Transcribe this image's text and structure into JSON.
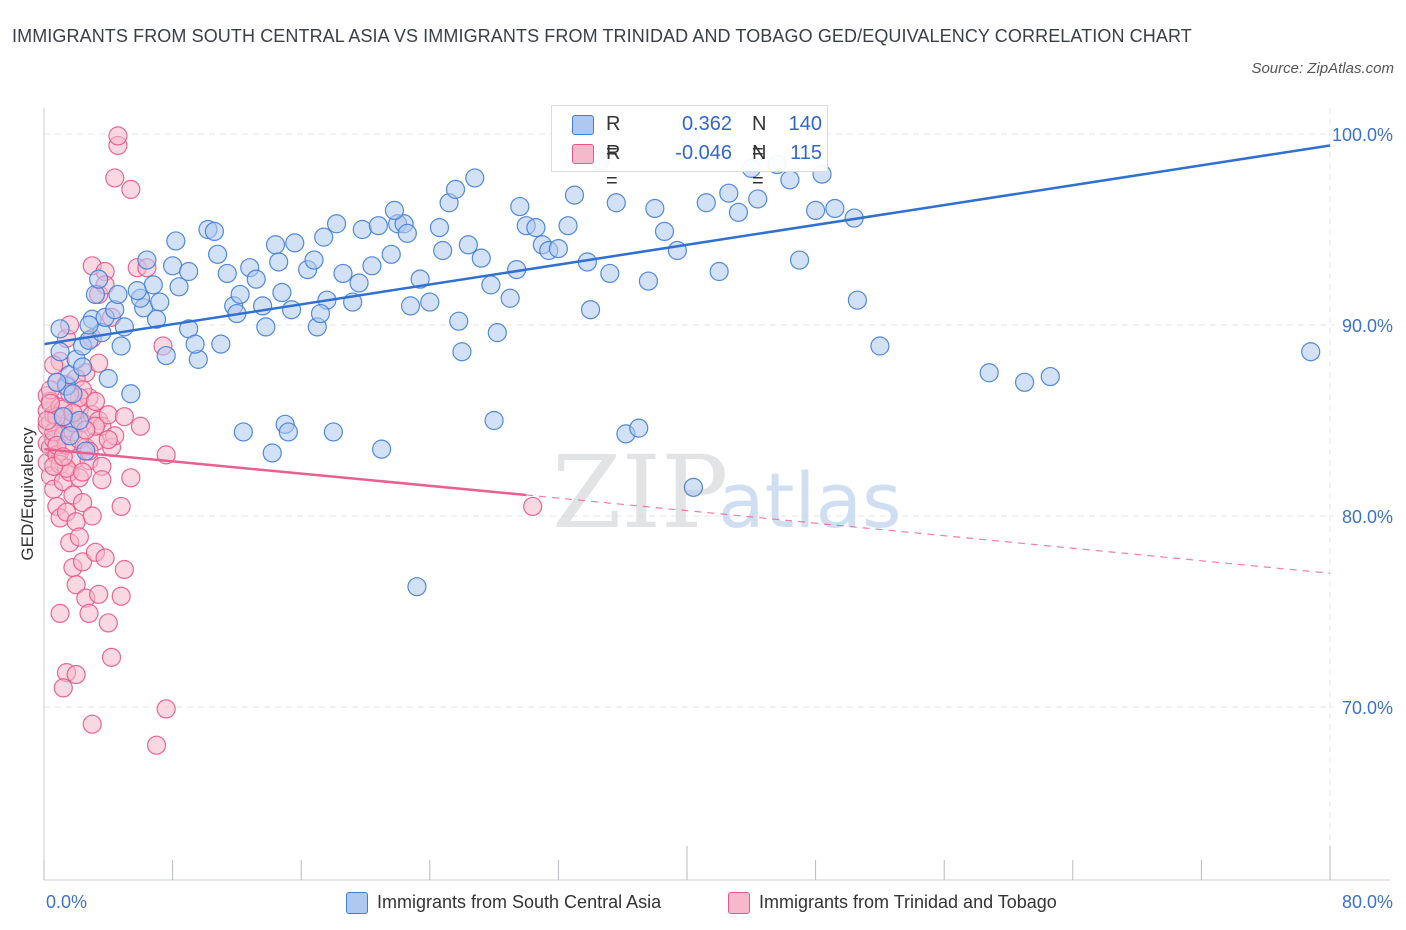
{
  "title": "IMMIGRANTS FROM SOUTH CENTRAL ASIA VS IMMIGRANTS FROM TRINIDAD AND TOBAGO GED/EQUIVALENCY CORRELATION CHART",
  "source": "Source: ZipAtlas.com",
  "watermark": {
    "zip": "ZIP",
    "atlas": "atlas"
  },
  "colors": {
    "blue": "#3f7dd9",
    "blue_fill": "#aec8f0",
    "blue_line": "#3070d0",
    "pink": "#e8578a",
    "pink_fill": "#f6b8cb",
    "pink_line": "#e8608f",
    "tick_text": "#3d72c9",
    "grid": "#e3e6ea"
  },
  "legend": {
    "r_label": "R =",
    "n_label": "N =",
    "series_a": {
      "r": "0.362",
      "n": "140"
    },
    "series_b": {
      "r": "-0.046",
      "n": "115"
    }
  },
  "bottom_legend": {
    "series_a": "Immigrants from South Central Asia",
    "series_b": "Immigrants from Trinidad and Tobago"
  },
  "chart_data": {
    "type": "scatter",
    "title": "IMMIGRANTS FROM SOUTH CENTRAL ASIA VS IMMIGRANTS FROM TRINIDAD AND TOBAGO GED/EQUIVALENCY CORRELATION CHART",
    "xlabel": "",
    "ylabel": "GED/Equivalency",
    "xlim": [
      0,
      80
    ],
    "ylim": [
      60,
      102
    ],
    "x_tick_labels": [
      "0.0%",
      "80.0%"
    ],
    "y_ticks": [
      100,
      90,
      80,
      70
    ],
    "y_tick_labels": [
      "100.0%",
      "90.0%",
      "80.0%",
      "70.0%"
    ],
    "grid": true,
    "legend_position": "top-center",
    "series": [
      {
        "name": "Immigrants from South Central Asia",
        "R": 0.362,
        "N": 140,
        "trend": {
          "x": [
            0,
            80
          ],
          "y": [
            89.0,
            99.4
          ],
          "style": "solid"
        },
        "points": [
          [
            1.0,
            88.6
          ],
          [
            1.4,
            86.8
          ],
          [
            1.6,
            87.4
          ],
          [
            2.0,
            88.2
          ],
          [
            2.4,
            88.9
          ],
          [
            2.8,
            89.2
          ],
          [
            3.0,
            90.3
          ],
          [
            3.2,
            91.6
          ],
          [
            3.6,
            89.6
          ],
          [
            3.8,
            90.4
          ],
          [
            4.0,
            87.2
          ],
          [
            4.4,
            90.8
          ],
          [
            4.6,
            91.6
          ],
          [
            5.0,
            89.9
          ],
          [
            5.4,
            86.4
          ],
          [
            6.2,
            90.9
          ],
          [
            6.8,
            92.1
          ],
          [
            7.2,
            91.2
          ],
          [
            7.6,
            88.4
          ],
          [
            8.0,
            93.1
          ],
          [
            8.4,
            92.0
          ],
          [
            9.0,
            89.8
          ],
          [
            9.6,
            88.2
          ],
          [
            10.2,
            95.0
          ],
          [
            10.6,
            94.9
          ],
          [
            11.4,
            92.7
          ],
          [
            11.8,
            91.0
          ],
          [
            12.2,
            91.6
          ],
          [
            12.8,
            93.0
          ],
          [
            13.2,
            92.4
          ],
          [
            13.8,
            89.9
          ],
          [
            14.4,
            94.2
          ],
          [
            14.8,
            91.7
          ],
          [
            15.4,
            90.8
          ],
          [
            15.6,
            94.3
          ],
          [
            16.4,
            92.9
          ],
          [
            17.0,
            89.9
          ],
          [
            17.6,
            91.3
          ],
          [
            18.2,
            95.3
          ],
          [
            18.6,
            92.7
          ],
          [
            19.2,
            91.2
          ],
          [
            19.8,
            95.0
          ],
          [
            20.8,
            95.2
          ],
          [
            21.6,
            93.7
          ],
          [
            22.0,
            95.3
          ],
          [
            22.4,
            95.3
          ],
          [
            22.8,
            91.0
          ],
          [
            23.4,
            92.4
          ],
          [
            24.0,
            91.2
          ],
          [
            24.6,
            95.1
          ],
          [
            25.2,
            96.4
          ],
          [
            25.6,
            97.1
          ],
          [
            26.8,
            97.7
          ],
          [
            27.8,
            92.1
          ],
          [
            28.2,
            89.6
          ],
          [
            29.4,
            92.9
          ],
          [
            29.6,
            96.2
          ],
          [
            30.0,
            95.2
          ],
          [
            31.0,
            94.2
          ],
          [
            32.6,
            95.2
          ],
          [
            33.0,
            96.8
          ],
          [
            34.6,
            98.6
          ],
          [
            35.6,
            96.4
          ],
          [
            38.0,
            96.1
          ],
          [
            38.6,
            94.9
          ],
          [
            40.2,
            99.9
          ],
          [
            41.2,
            96.4
          ],
          [
            42.0,
            92.8
          ],
          [
            44.4,
            96.6
          ],
          [
            45.6,
            98.4
          ],
          [
            47.0,
            93.4
          ],
          [
            48.4,
            97.9
          ],
          [
            49.2,
            96.1
          ],
          [
            50.4,
            95.6
          ],
          [
            50.6,
            91.3
          ],
          [
            52.0,
            88.9
          ],
          [
            2.2,
            85.0
          ],
          [
            1.8,
            86.4
          ],
          [
            1.2,
            85.2
          ],
          [
            2.6,
            83.4
          ],
          [
            12.4,
            84.4
          ],
          [
            14.2,
            83.3
          ],
          [
            15.0,
            84.8
          ],
          [
            15.2,
            84.4
          ],
          [
            18.0,
            84.4
          ],
          [
            21.0,
            83.5
          ],
          [
            26.0,
            88.6
          ],
          [
            28.0,
            85.0
          ],
          [
            36.2,
            84.3
          ],
          [
            37.0,
            84.6
          ],
          [
            40.4,
            81.5
          ],
          [
            58.8,
            87.5
          ],
          [
            61.0,
            87.0
          ],
          [
            62.6,
            87.3
          ],
          [
            78.8,
            88.6
          ],
          [
            23.2,
            76.3
          ],
          [
            2.8,
            90.0
          ],
          [
            3.4,
            92.4
          ],
          [
            6.4,
            93.4
          ],
          [
            8.2,
            94.4
          ],
          [
            9.0,
            92.8
          ],
          [
            10.8,
            93.7
          ],
          [
            12.0,
            90.6
          ],
          [
            16.8,
            93.4
          ],
          [
            17.4,
            94.6
          ],
          [
            20.4,
            93.1
          ],
          [
            24.8,
            93.9
          ],
          [
            27.2,
            93.5
          ],
          [
            30.6,
            95.1
          ],
          [
            33.8,
            93.3
          ],
          [
            35.2,
            92.7
          ],
          [
            43.2,
            95.9
          ],
          [
            46.4,
            97.6
          ],
          [
            1.6,
            84.2
          ],
          [
            0.8,
            87.0
          ],
          [
            4.8,
            88.9
          ],
          [
            6.0,
            91.4
          ],
          [
            11.0,
            89.0
          ],
          [
            13.6,
            91.0
          ],
          [
            19.6,
            92.2
          ],
          [
            22.6,
            94.8
          ],
          [
            26.4,
            94.2
          ],
          [
            31.4,
            93.9
          ],
          [
            37.6,
            92.3
          ],
          [
            39.4,
            93.9
          ],
          [
            44.0,
            98.2
          ],
          [
            2.4,
            87.8
          ],
          [
            7.0,
            90.3
          ],
          [
            9.4,
            89.0
          ],
          [
            14.6,
            93.3
          ],
          [
            17.2,
            90.6
          ],
          [
            21.8,
            96.0
          ],
          [
            25.8,
            90.2
          ],
          [
            29.0,
            91.4
          ],
          [
            32.0,
            94.0
          ],
          [
            34.0,
            90.8
          ],
          [
            42.6,
            96.9
          ],
          [
            48.0,
            96.0
          ],
          [
            1.0,
            89.8
          ],
          [
            5.8,
            91.8
          ]
        ]
      },
      {
        "name": "Immigrants from Trinidad and Tobago",
        "R": -0.046,
        "N": 115,
        "trend": {
          "x": [
            0,
            30
          ],
          "y": [
            83.5,
            81.1
          ],
          "style": "solid",
          "dashed_extension": {
            "x": [
              30,
              80
            ],
            "y": [
              81.1,
              77.0
            ]
          }
        },
        "points": [
          [
            0.2,
            86.3
          ],
          [
            0.2,
            85.5
          ],
          [
            0.2,
            84.7
          ],
          [
            0.2,
            83.8
          ],
          [
            0.2,
            82.8
          ],
          [
            0.4,
            86.0
          ],
          [
            0.4,
            84.9
          ],
          [
            0.4,
            83.6
          ],
          [
            0.4,
            82.1
          ],
          [
            0.6,
            85.3
          ],
          [
            0.6,
            84.0
          ],
          [
            0.6,
            81.4
          ],
          [
            0.8,
            87.0
          ],
          [
            0.8,
            83.2
          ],
          [
            0.8,
            80.5
          ],
          [
            1.0,
            85.7
          ],
          [
            1.0,
            82.7
          ],
          [
            1.0,
            79.9
          ],
          [
            1.2,
            84.2
          ],
          [
            1.2,
            81.8
          ],
          [
            1.4,
            86.9
          ],
          [
            1.4,
            83.7
          ],
          [
            1.4,
            80.2
          ],
          [
            1.6,
            85.0
          ],
          [
            1.6,
            82.3
          ],
          [
            1.6,
            78.6
          ],
          [
            1.8,
            84.4
          ],
          [
            1.8,
            81.1
          ],
          [
            1.8,
            77.3
          ],
          [
            2.0,
            83.0
          ],
          [
            2.0,
            79.7
          ],
          [
            2.0,
            76.4
          ],
          [
            2.2,
            85.6
          ],
          [
            2.2,
            82.0
          ],
          [
            2.2,
            78.9
          ],
          [
            2.4,
            84.9
          ],
          [
            2.4,
            80.7
          ],
          [
            2.4,
            77.6
          ],
          [
            2.6,
            83.6
          ],
          [
            2.6,
            75.7
          ],
          [
            2.8,
            86.2
          ],
          [
            2.8,
            82.9
          ],
          [
            2.8,
            74.9
          ],
          [
            3.0,
            85.3
          ],
          [
            3.0,
            80.0
          ],
          [
            3.0,
            93.1
          ],
          [
            3.2,
            83.9
          ],
          [
            3.2,
            78.1
          ],
          [
            3.4,
            85.0
          ],
          [
            3.4,
            75.9
          ],
          [
            3.6,
            84.7
          ],
          [
            3.6,
            82.6
          ],
          [
            3.8,
            92.8
          ],
          [
            3.8,
            77.8
          ],
          [
            4.0,
            85.3
          ],
          [
            4.0,
            74.4
          ],
          [
            4.2,
            83.6
          ],
          [
            4.2,
            72.6
          ],
          [
            4.4,
            84.2
          ],
          [
            4.4,
            97.7
          ],
          [
            4.6,
            99.4
          ],
          [
            4.8,
            75.8
          ],
          [
            5.0,
            85.2
          ],
          [
            5.0,
            77.2
          ],
          [
            5.4,
            82.0
          ],
          [
            5.4,
            97.1
          ],
          [
            5.8,
            93.0
          ],
          [
            6.0,
            84.7
          ],
          [
            6.4,
            93.0
          ],
          [
            7.0,
            68.0
          ],
          [
            7.4,
            88.9
          ],
          [
            7.6,
            83.2
          ],
          [
            7.6,
            69.9
          ],
          [
            3.4,
            91.6
          ],
          [
            3.0,
            89.3
          ],
          [
            2.6,
            87.5
          ],
          [
            1.4,
            89.3
          ],
          [
            1.6,
            90.0
          ],
          [
            1.0,
            88.1
          ],
          [
            0.6,
            87.9
          ],
          [
            3.8,
            92.1
          ],
          [
            4.2,
            90.4
          ],
          [
            2.0,
            87.2
          ],
          [
            2.4,
            86.6
          ],
          [
            1.2,
            85.6
          ],
          [
            0.4,
            86.6
          ],
          [
            0.8,
            85.2
          ],
          [
            1.8,
            84.9
          ],
          [
            2.2,
            84.0
          ],
          [
            2.8,
            83.4
          ],
          [
            3.2,
            84.7
          ],
          [
            3.6,
            81.9
          ],
          [
            4.8,
            80.5
          ],
          [
            1.0,
            74.9
          ],
          [
            1.4,
            71.8
          ],
          [
            2.0,
            71.7
          ],
          [
            3.0,
            69.1
          ],
          [
            1.2,
            71.0
          ],
          [
            4.6,
            99.9
          ],
          [
            3.4,
            88.0
          ],
          [
            2.2,
            86.2
          ],
          [
            1.6,
            86.4
          ],
          [
            0.6,
            84.4
          ],
          [
            0.2,
            85.0
          ],
          [
            0.4,
            85.9
          ],
          [
            1.8,
            85.4
          ],
          [
            2.6,
            84.5
          ],
          [
            3.2,
            86.0
          ],
          [
            4.0,
            84.0
          ],
          [
            30.4,
            80.5
          ],
          [
            0.8,
            83.7
          ],
          [
            1.4,
            82.5
          ],
          [
            2.4,
            82.3
          ],
          [
            0.6,
            82.6
          ],
          [
            1.2,
            83.1
          ]
        ]
      }
    ]
  }
}
